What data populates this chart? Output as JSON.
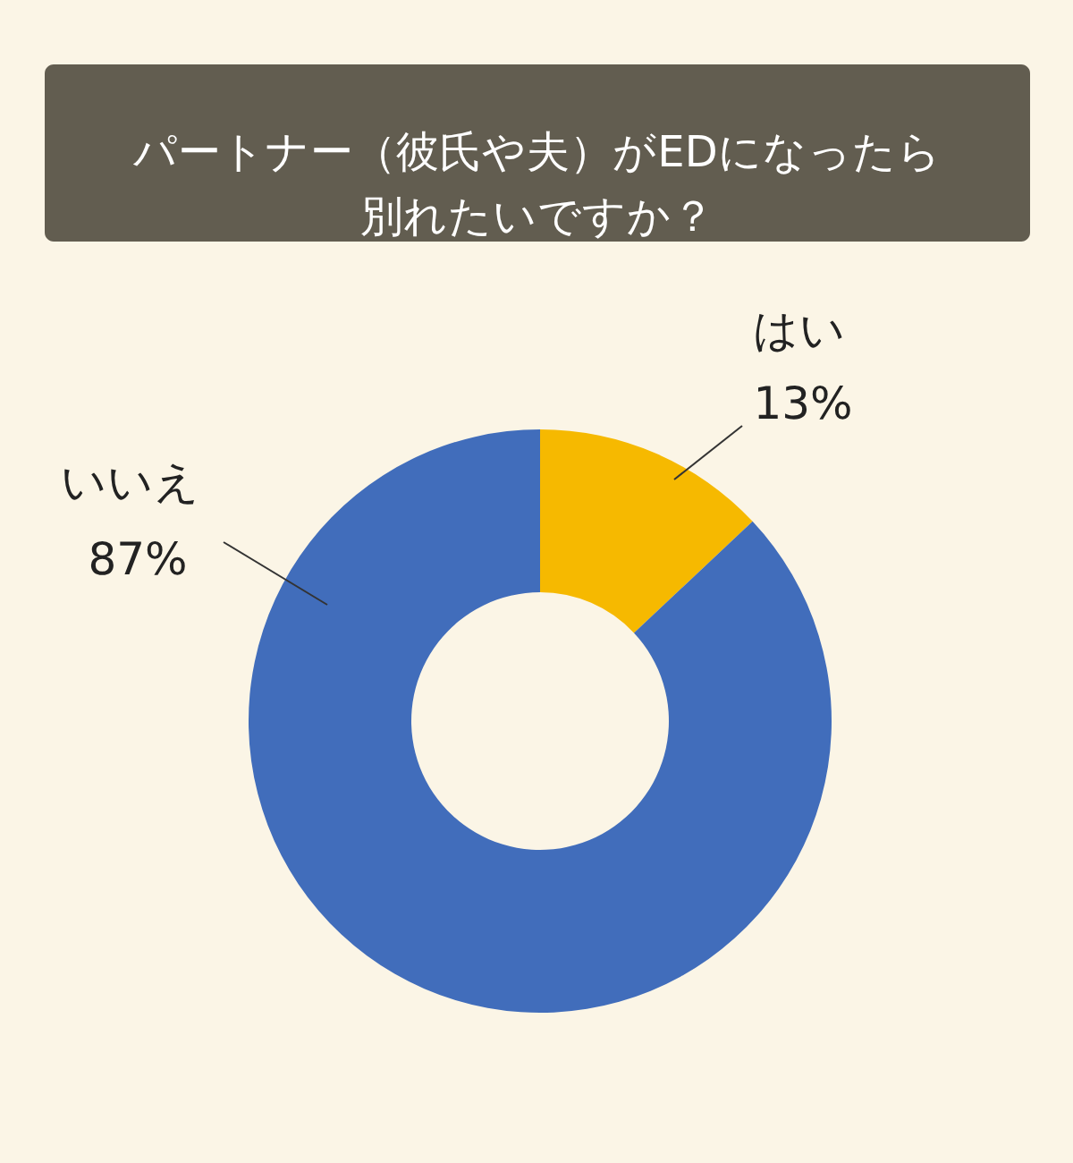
{
  "chart_data": {
    "type": "donut",
    "title": "パートナー（彼氏や夫）がEDになったら別れたいですか？",
    "categories": [
      "はい",
      "いいえ"
    ],
    "values": [
      13,
      87
    ],
    "colors": [
      "#f6b900",
      "#416dbb"
    ],
    "value_labels": [
      "13%",
      "87%"
    ]
  }
}
